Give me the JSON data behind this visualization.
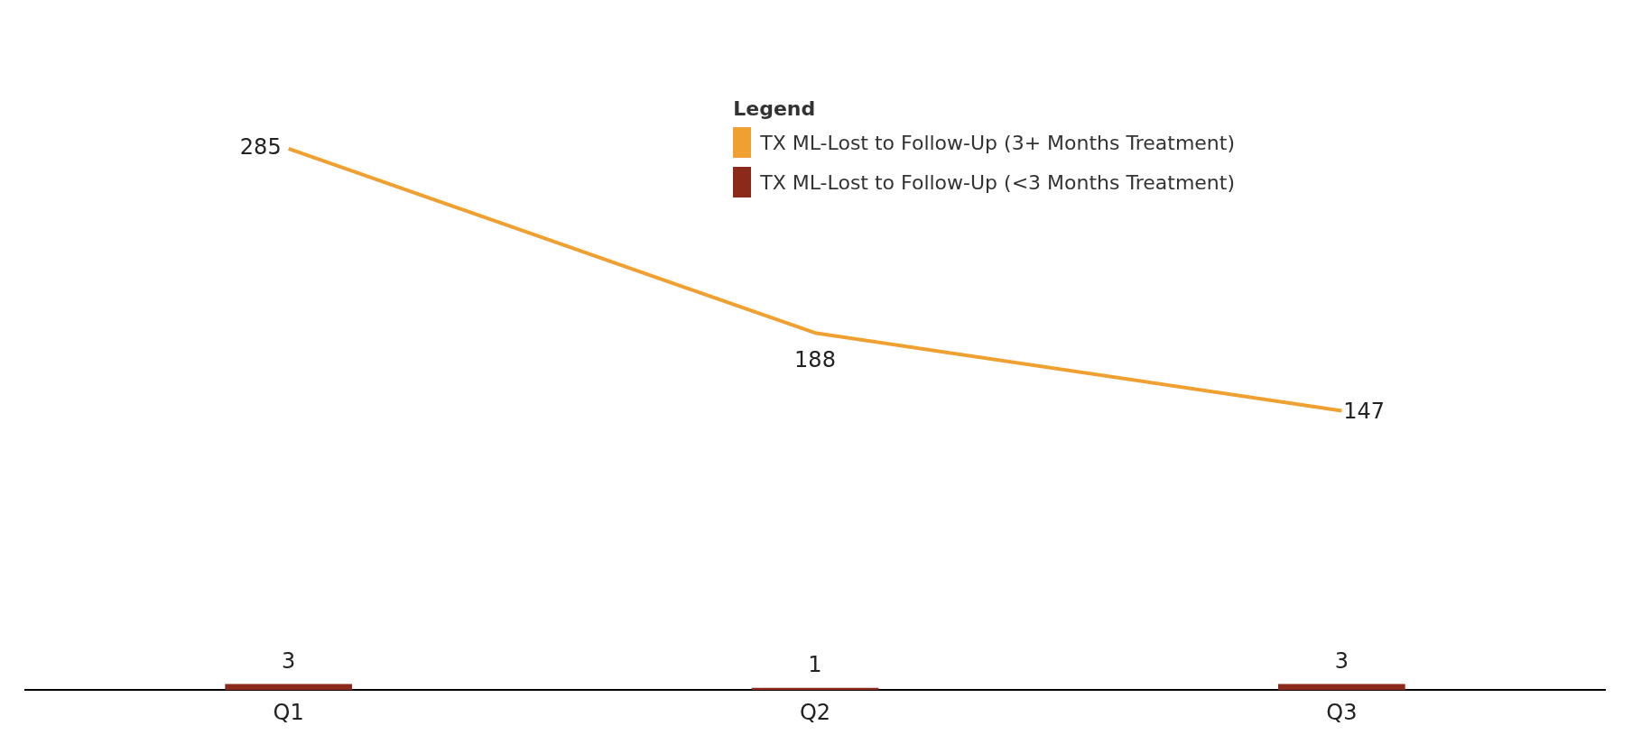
{
  "chart_data": {
    "type": "bar",
    "categories": [
      "Q1",
      "Q2",
      "Q3"
    ],
    "legend_title": "Legend",
    "legend": "top right",
    "grid": false,
    "marker": "none",
    "data_labels": true,
    "series": [
      {
        "name": "TX ML-Lost to Follow-Up (3+ Months Treatment)",
        "type": "line",
        "color": "#f0a030",
        "values": [
          285,
          188,
          147
        ]
      },
      {
        "name": "TX ML-Lost to Follow-Up (<3 Months Treatment)",
        "color": "#8b2a1a",
        "values": [
          3,
          1,
          3
        ]
      }
    ]
  }
}
